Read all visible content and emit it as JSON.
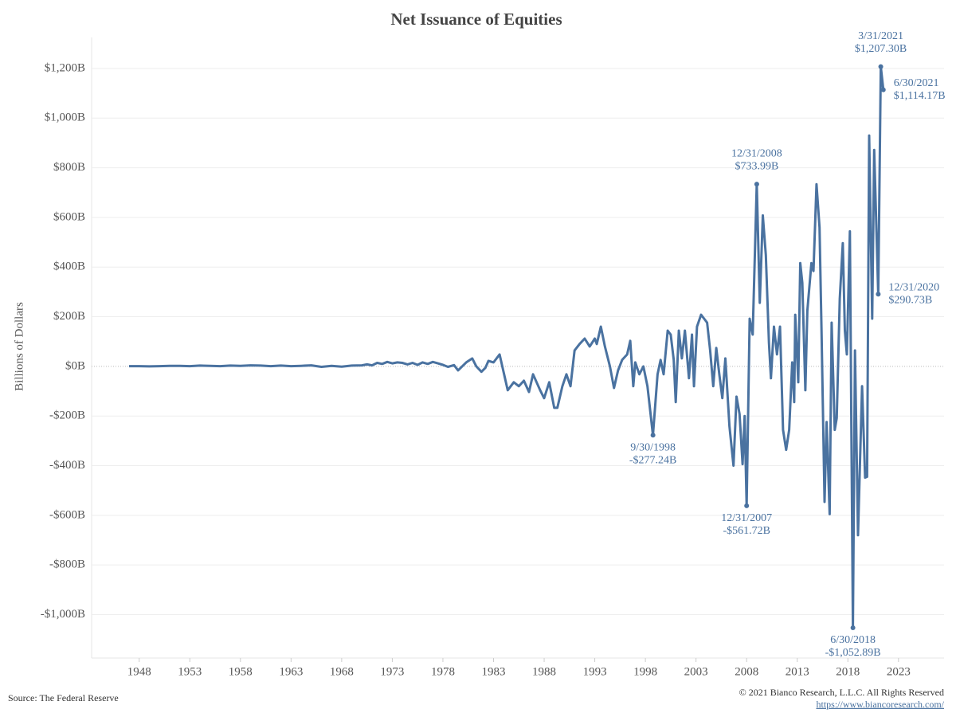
{
  "chart_data": {
    "type": "line",
    "title": "Net Issuance of Equities",
    "y_label": "Billions of Dollars",
    "source": "Source: The Federal Reserve",
    "copyright": "© 2021 Bianco Research, L.L.C. All Rights Reserved",
    "url": "https://www.biancoresearch.com/",
    "grid": true,
    "series": [
      {
        "name": "Net Issuance of Equities",
        "color": "#4a72a0",
        "x": [
          1947,
          1948,
          1949,
          1950,
          1951,
          1952,
          1953,
          1954,
          1955,
          1956,
          1957,
          1958,
          1959,
          1960,
          1961,
          1962,
          1963,
          1964,
          1965,
          1966,
          1967,
          1968,
          1969,
          1970,
          1970.5,
          1971,
          1971.5,
          1972,
          1972.5,
          1973,
          1973.5,
          1974,
          1974.5,
          1975,
          1975.5,
          1976,
          1976.5,
          1977,
          1977.5,
          1978,
          1978.5,
          1979.1,
          1979.5,
          1980.3,
          1980.9,
          1981.3,
          1981.8,
          1982.2,
          1982.5,
          1983.0,
          1983.6,
          1984.4,
          1985,
          1985.5,
          1986,
          1986.5,
          1986.9,
          1987.6,
          1988.0,
          1988.5,
          1989.0,
          1989.3,
          1989.8,
          1990.2,
          1990.6,
          1991,
          1991.5,
          1992,
          1992.5,
          1993,
          1993.2,
          1993.6,
          1994,
          1994.5,
          1994.9,
          1995.3,
          1995.7,
          1996.2,
          1996.5,
          1996.8,
          1997,
          1997.4,
          1997.8,
          1998.2,
          1998.75,
          1999.2,
          1999.5,
          1999.8,
          2000.2,
          2000.5,
          2000.8,
          2001.0,
          2001.3,
          2001.6,
          2001.9,
          2002.3,
          2002.6,
          2002.8,
          2003.1,
          2003.5,
          2003.8,
          2004.1,
          2004.4,
          2004.7,
          2005.0,
          2005.3,
          2005.6,
          2005.9,
          2006.3,
          2006.7,
          2007,
          2007.3,
          2007.6,
          2007.8,
          2008.0,
          2008.3,
          2008.6,
          2009.0,
          2009.3,
          2009.6,
          2009.9,
          2010.2,
          2010.4,
          2010.7,
          2011.0,
          2011.3,
          2011.6,
          2011.9,
          2012.2,
          2012.5,
          2012.7,
          2012.8,
          2013.1,
          2013.3,
          2013.5,
          2013.8,
          2014.0,
          2014.4,
          2014.6,
          2014.9,
          2015.2,
          2015.4,
          2015.7,
          2015.9,
          2016.2,
          2016.4,
          2016.7,
          2016.9,
          2017.2,
          2017.5,
          2017.7,
          2017.9,
          2018.2,
          2018.5,
          2018.7,
          2019.0,
          2019.4,
          2019.7,
          2019.9,
          2020.1,
          2020.4,
          2020.6,
          2021.0,
          2021.25,
          2021.5
        ],
        "values": [
          1,
          1,
          0,
          1,
          2,
          2,
          1,
          3,
          2,
          1,
          3,
          2,
          4,
          3,
          1,
          3,
          1,
          2,
          4,
          -2,
          2,
          -1,
          3,
          4,
          8,
          4,
          14,
          10,
          18,
          12,
          16,
          14,
          8,
          14,
          6,
          16,
          10,
          18,
          12,
          6,
          -2,
          5,
          -16,
          16,
          32,
          0,
          -22,
          -6,
          22,
          16,
          48,
          -96,
          -64,
          -80,
          -58,
          -103,
          -32,
          -96,
          -128,
          -64,
          -167,
          -167,
          -80,
          -32,
          -80,
          64,
          90,
          112,
          80,
          112,
          90,
          160,
          80,
          0,
          -87,
          -16,
          26,
          48,
          103,
          -80,
          16,
          -32,
          0,
          -80,
          -277.24,
          -32,
          26,
          -32,
          144,
          128,
          26,
          -144,
          144,
          32,
          144,
          -48,
          128,
          -80,
          160,
          208,
          192,
          176,
          64,
          -80,
          74,
          -32,
          -128,
          32,
          -240,
          -400,
          -122,
          -192,
          -394,
          -200,
          -561.72,
          192,
          128,
          733.99,
          256,
          608,
          448,
          96,
          -48,
          160,
          48,
          160,
          -256,
          -336,
          -256,
          16,
          -144,
          208,
          -64,
          416,
          336,
          -96,
          224,
          416,
          384,
          734,
          560,
          144,
          -546,
          -224,
          -595,
          176,
          -256,
          -208,
          272,
          496,
          144,
          48,
          544,
          -1052.89,
          64,
          -680,
          -80,
          -448,
          -445,
          930,
          192,
          872,
          290.73,
          1207.3,
          1114.17
        ]
      }
    ],
    "annotations": [
      {
        "date": "3/31/2021",
        "label": "$1,207.30B",
        "x": 2021.25,
        "y": 1207.3,
        "position": "above"
      },
      {
        "date": "6/30/2021",
        "label": "$1,114.17B",
        "x": 2021.5,
        "y": 1114.17,
        "position": "right"
      },
      {
        "date": "12/31/2008",
        "label": "$733.99B",
        "x": 2009.0,
        "y": 733.99,
        "position": "above"
      },
      {
        "date": "12/31/2020",
        "label": "$290.73B",
        "x": 2021.0,
        "y": 290.73,
        "position": "right"
      },
      {
        "date": "9/30/1998",
        "label": "-$277.24B",
        "x": 1998.75,
        "y": -277.24,
        "position": "below"
      },
      {
        "date": "12/31/2007",
        "label": "-$561.72B",
        "x": 2008.0,
        "y": -561.72,
        "position": "below"
      },
      {
        "date": "6/30/2018",
        "label": "-$1,052.89B",
        "x": 2018.5,
        "y": -1052.89,
        "position": "below"
      }
    ],
    "xlim": [
      1943.3,
      2027.5
    ],
    "xticks": [
      1948,
      1953,
      1958,
      1963,
      1968,
      1973,
      1978,
      1983,
      1988,
      1993,
      1998,
      2003,
      2008,
      2013,
      2018,
      2023
    ],
    "ylim": [
      -1175,
      1325
    ],
    "yticks": [
      {
        "value": -1000,
        "label": "-$1,000B"
      },
      {
        "value": -800,
        "label": "-$800B"
      },
      {
        "value": -600,
        "label": "-$600B"
      },
      {
        "value": -400,
        "label": "-$400B"
      },
      {
        "value": -200,
        "label": "-$200B"
      },
      {
        "value": 0,
        "label": "$0B"
      },
      {
        "value": 200,
        "label": "$200B"
      },
      {
        "value": 400,
        "label": "$400B"
      },
      {
        "value": 600,
        "label": "$600B"
      },
      {
        "value": 800,
        "label": "$800B"
      },
      {
        "value": 1000,
        "label": "$1,000B"
      },
      {
        "value": 1200,
        "label": "$1,200B"
      }
    ]
  }
}
